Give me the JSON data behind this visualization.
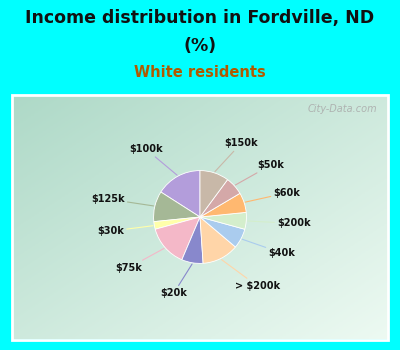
{
  "title_line1": "Income distribution in Fordville, ND",
  "title_line2": "(%)",
  "subtitle": "White residents",
  "title_color": "#111111",
  "subtitle_color": "#b05a00",
  "bg_color": "#00ffff",
  "chart_bg_colors": [
    "#e8f5ee",
    "#c8e6d4",
    "#b0d9c0"
  ],
  "watermark": "City-Data.com",
  "labels": [
    "$100k",
    "$125k",
    "$30k",
    "$75k",
    "$20k",
    "> $200k",
    "$40k",
    "$200k",
    "$60k",
    "$50k",
    "$150k"
  ],
  "values": [
    15.0,
    10.0,
    2.5,
    13.5,
    7.0,
    12.0,
    6.5,
    5.5,
    6.5,
    6.0,
    9.5
  ],
  "colors": [
    "#b39ddb",
    "#a5b896",
    "#ffffaa",
    "#f4b8c8",
    "#8888cc",
    "#ffd5a8",
    "#aaccee",
    "#d4eecc",
    "#ffb870",
    "#d4a8a8",
    "#c8b8a8"
  ],
  "start_angle": 90,
  "label_color": "#111111",
  "figsize": [
    4.0,
    3.5
  ],
  "dpi": 100
}
